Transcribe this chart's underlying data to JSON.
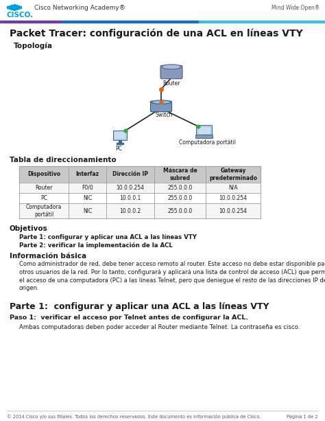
{
  "bg_color": "#ffffff",
  "bar_purple": "#6b3fa0",
  "bar_blue": "#1f6fbf",
  "bar_lightblue": "#49b8e0",
  "cisco_blue": "#049fd9",
  "title": "Packet Tracer: configuración de una ACL en líneas VTY",
  "subtitle_topology": "Topología",
  "section_direccionamiento": "Tabla de direccionamiento",
  "section_objetivos": "Objetivos",
  "obj1": "Parte 1: configurar y aplicar una ACL a las líneas VTY",
  "obj2": "Parte 2: verificar la implementación de la ACL",
  "section_info": "Información básica",
  "info_text": "Como administrador de red, debe tener acceso remoto al router. Este acceso no debe estar disponible para\notros usuarios de la red. Por lo tanto, configurará y aplicará una lista de control de acceso (ACL) que permita\nel acceso de una computadora (PC) a las líneas Telnet, pero que deniegue el resto de las direcciones IP de\norigen.",
  "section_parte1": "Parte 1:  configurar y aplicar una ACL a las líneas VTY",
  "paso1_title": "Paso 1:  verificar el acceso por Telnet antes de configurar la ACL.",
  "paso1_text": "Ambas computadoras deben poder acceder al Router mediante Telnet. La contraseña es cisco.",
  "footer_text": "© 2014 Cisco y/o sus filiales. Todos los derechos reservados. Este documento es información pública de Cisco.",
  "footer_page": "Página 1 de 2",
  "cisco_academy_text": "Cisco Networking Academy®",
  "mind_text": "Mind Wide Open®",
  "table_headers": [
    "Dispositivo",
    "Interfaz",
    "Dirección IP",
    "Máscara de\nsubred",
    "Gateway\npredeterminado"
  ],
  "table_rows": [
    [
      "Router",
      "F0/0",
      "10.0.0.254",
      "255.0.0.0",
      "N/A"
    ],
    [
      "PC",
      "NIC",
      "10.0.0.1",
      "255.0.0.0",
      "10.0.0.254"
    ],
    [
      "Computadora\nportátil",
      "NIC",
      "10.0.0.2",
      "255.0.0.0",
      "10.0.0.254"
    ]
  ],
  "text_dark": "#1a1a1a",
  "text_gray": "#555555",
  "table_header_bg": "#c8c8c8",
  "table_row_bg": "#f5f5f5"
}
